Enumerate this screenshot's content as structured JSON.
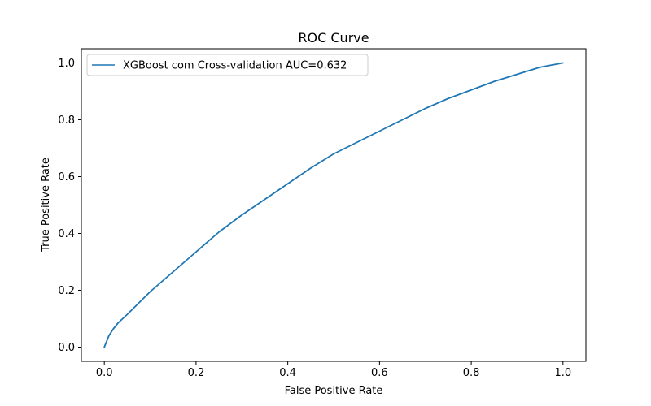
{
  "chart_data": {
    "type": "line",
    "title": "ROC Curve",
    "xlabel": "False Positive Rate",
    "ylabel": "True Positive Rate",
    "xlim": [
      -0.05,
      1.05
    ],
    "ylim": [
      -0.05,
      1.05
    ],
    "xticks": [
      0.0,
      0.2,
      0.4,
      0.6,
      0.8,
      1.0
    ],
    "yticks": [
      0.0,
      0.2,
      0.4,
      0.6,
      0.8,
      1.0
    ],
    "xtick_labels": [
      "0.0",
      "0.2",
      "0.4",
      "0.6",
      "0.8",
      "1.0"
    ],
    "ytick_labels": [
      "0.0",
      "0.2",
      "0.4",
      "0.6",
      "0.8",
      "1.0"
    ],
    "grid": false,
    "legend_position": "top-left",
    "series": [
      {
        "name": "XGBoost com Cross-validation AUC=0.632",
        "color": "#1f77b4",
        "x": [
          0.0,
          0.005,
          0.01,
          0.02,
          0.03,
          0.05,
          0.075,
          0.1,
          0.15,
          0.2,
          0.25,
          0.3,
          0.35,
          0.4,
          0.45,
          0.5,
          0.55,
          0.6,
          0.65,
          0.7,
          0.75,
          0.8,
          0.85,
          0.9,
          0.95,
          1.0
        ],
        "y": [
          0.0,
          0.02,
          0.04,
          0.065,
          0.085,
          0.115,
          0.155,
          0.195,
          0.265,
          0.335,
          0.405,
          0.465,
          0.52,
          0.575,
          0.63,
          0.68,
          0.72,
          0.76,
          0.8,
          0.84,
          0.875,
          0.905,
          0.935,
          0.96,
          0.985,
          1.0
        ]
      }
    ]
  }
}
